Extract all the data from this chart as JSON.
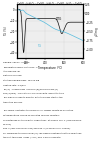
{
  "title": "CaSO₄ ·½H₂O → CaSO₄, ½H₂O → CaSO₄, H₂O → CaSO₄",
  "xlabel": "Temperature (°C)",
  "ylabel_left": "TG (%)",
  "ylabel_right": "μV/mg",
  "xlim": [
    100,
    800
  ],
  "ylim_left": [
    -45,
    5
  ],
  "ylim_right": [
    -1.25,
    0.25
  ],
  "tg_color": "#111111",
  "dsc_color": "#55bbdd",
  "background_color": "#ffffff",
  "chart_bg": "#eeeeee",
  "annotation_dtg": "DTG",
  "annotation_tg": "TG",
  "text_lines": [
    "Sample: CaSO4 · 0.5H2O",
    "Temperature ramp: 20 to 800 °C",
    "Atmosphere: air",
    "Platinum crucible",
    "Starting sample mass: 153.23 mg",
    "Heating rate: 2 K/min",
    "TG (%) - shows mass loss from (g)/sample mass (g)",
    "DTG(%/min) - derivative of TG signal with respect to time",
    "This signal is used to monitor both the mass start of the",
    "transition process.",
    "",
    "This figure illustrates the mass loss of copper sulfate as a function",
    "of temperature. Drying of hydrated calcium sulfate is",
    "characterized by three water depositions: at around 170°C (loss molecule",
    "of H2O)",
    "680°C (loss H2O molecules) and 680°C (in molecule of H2SO4).",
    "For observing the DTG signal (%), we clearly identified that the amplitude",
    "the first two mass losses (~5% ) and 1.8% in absolute."
  ]
}
